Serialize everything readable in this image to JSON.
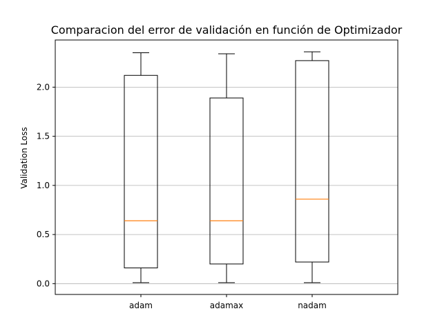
{
  "chart_data": {
    "type": "boxplot",
    "title": "Comparacion del error de validación en función de Optimizador",
    "xlabel": "",
    "ylabel": "Validation Loss",
    "categories": [
      "adam",
      "adamax",
      "nadam"
    ],
    "boxes": [
      {
        "label": "adam",
        "whislo": 0.01,
        "q1": 0.16,
        "med": 0.64,
        "q3": 2.12,
        "whishi": 2.35
      },
      {
        "label": "adamax",
        "whislo": 0.01,
        "q1": 0.2,
        "med": 0.64,
        "q3": 1.89,
        "whishi": 2.34
      },
      {
        "label": "nadam",
        "whislo": 0.01,
        "q1": 0.22,
        "med": 0.86,
        "q3": 2.27,
        "whishi": 2.36
      }
    ],
    "ylim": [
      -0.11,
      2.48
    ],
    "yticks": [
      0.0,
      0.5,
      1.0,
      1.5,
      2.0
    ],
    "ytick_labels": [
      "0.0",
      "0.5",
      "1.0",
      "1.5",
      "2.0"
    ],
    "grid": "y",
    "colors": {
      "box": "#000000",
      "median": "#ff7f0e",
      "grid": "#b0b0b0"
    }
  }
}
